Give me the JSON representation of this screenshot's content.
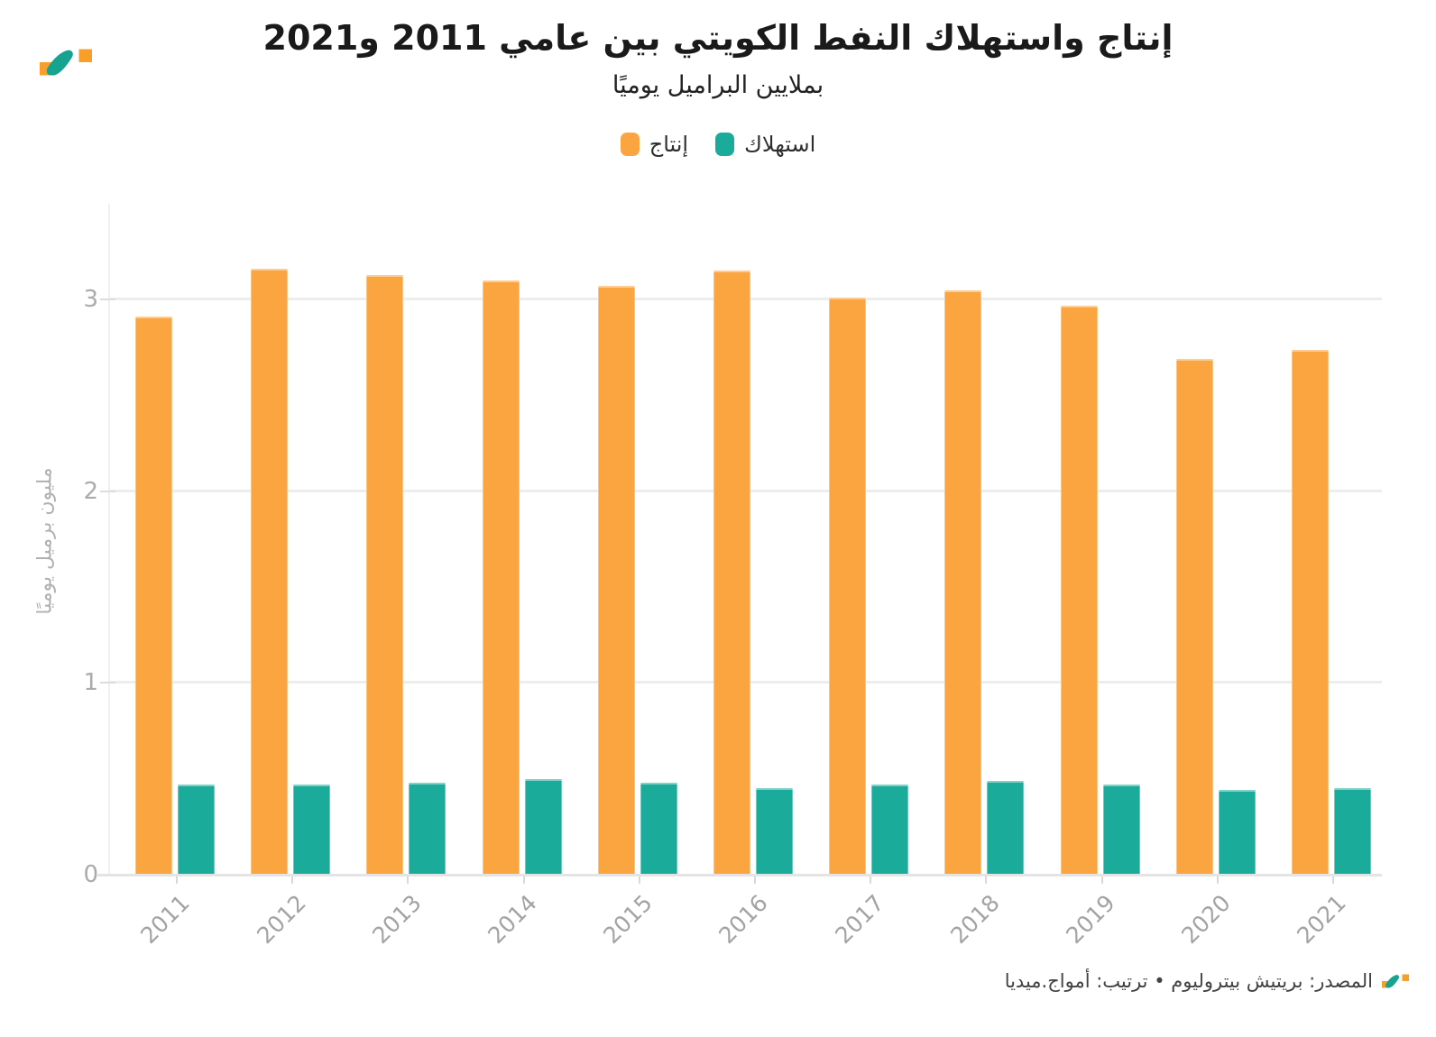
{
  "header": {
    "title": "إنتاج واستهلاك النفط الكويتي بين عامي 2011 و2021",
    "subtitle": "بملايين البراميل يوميًا"
  },
  "legend": {
    "items": [
      {
        "key": "production",
        "label": "إنتاج",
        "color": "#FAA53F"
      },
      {
        "key": "consumption",
        "label": "استهلاك",
        "color": "#1BAB9B"
      }
    ]
  },
  "chart_data": {
    "type": "bar",
    "title": "إنتاج واستهلاك النفط الكويتي بين عامي 2011 و2021",
    "subtitle": "بملايين البراميل يوميًا",
    "categories": [
      "2011",
      "2012",
      "2013",
      "2014",
      "2015",
      "2016",
      "2017",
      "2018",
      "2019",
      "2020",
      "2021"
    ],
    "series": [
      {
        "key": "production",
        "name": "إنتاج",
        "color": "#FAA53F",
        "values": [
          2.91,
          3.16,
          3.13,
          3.1,
          3.07,
          3.15,
          3.01,
          3.05,
          2.97,
          2.69,
          2.74
        ]
      },
      {
        "key": "consumption",
        "name": "استهلاك",
        "color": "#1BAB9B",
        "values": [
          0.47,
          0.47,
          0.48,
          0.5,
          0.48,
          0.45,
          0.47,
          0.49,
          0.47,
          0.44,
          0.45
        ]
      }
    ],
    "xlabel": "",
    "ylabel": "مليون برميل يوميًا",
    "yticks": [
      0,
      1,
      2,
      3
    ],
    "ylim": [
      0,
      3.5
    ],
    "grid": "horizontal",
    "legend_position": "top-center"
  },
  "footer": {
    "source": "المصدر: بريتيش بيتروليوم • ترتيب: أمواج.ميديا"
  },
  "colors": {
    "production": "#FAA53F",
    "consumption": "#1BAB9B",
    "logo_orange": "#F89E2B",
    "logo_teal": "#16A390"
  }
}
